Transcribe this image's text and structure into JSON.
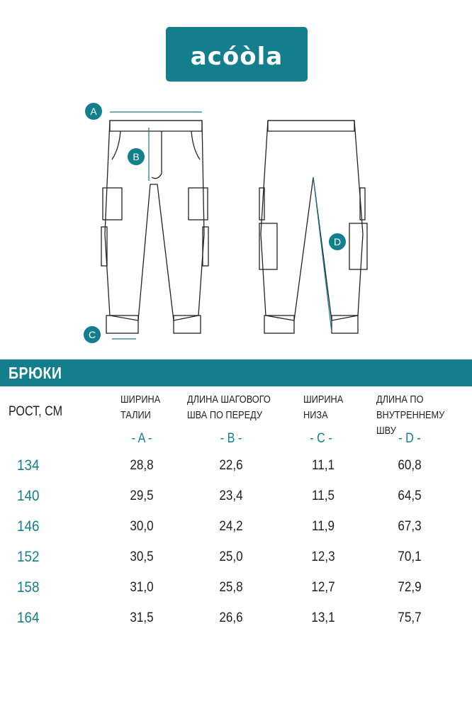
{
  "brand": {
    "logo_text": "acóòla",
    "color": "#137f8c"
  },
  "diagram": {
    "labels": [
      "A",
      "B",
      "C",
      "D"
    ]
  },
  "section_title": "БРЮКИ",
  "table": {
    "row_header": "РОСТ, СМ",
    "columns": [
      {
        "line1": "ШИРИНА",
        "line2": "ТАЛИИ",
        "letter": "- A -"
      },
      {
        "line1": "ДЛИНА ШАГОВОГО",
        "line2": "ШВА ПО ПЕРЕДУ",
        "letter": "- B -"
      },
      {
        "line1": "ШИРИНА",
        "line2": "НИЗА",
        "letter": "- C -"
      },
      {
        "line1": "ДЛИНА ПО",
        "line2": "ВНУТРЕННЕМУ ШВУ",
        "letter": "- D -"
      }
    ],
    "rows": [
      {
        "height": "134",
        "values": [
          "28,8",
          "22,6",
          "11,1",
          "60,8"
        ]
      },
      {
        "height": "140",
        "values": [
          "29,5",
          "23,4",
          "11,5",
          "64,5"
        ]
      },
      {
        "height": "146",
        "values": [
          "30,0",
          "24,2",
          "11,9",
          "67,3"
        ]
      },
      {
        "height": "152",
        "values": [
          "30,5",
          "25,0",
          "12,3",
          "70,1"
        ]
      },
      {
        "height": "158",
        "values": [
          "31,0",
          "25,8",
          "12,7",
          "72,9"
        ]
      },
      {
        "height": "164",
        "values": [
          "31,5",
          "26,6",
          "13,1",
          "75,7"
        ]
      }
    ]
  }
}
